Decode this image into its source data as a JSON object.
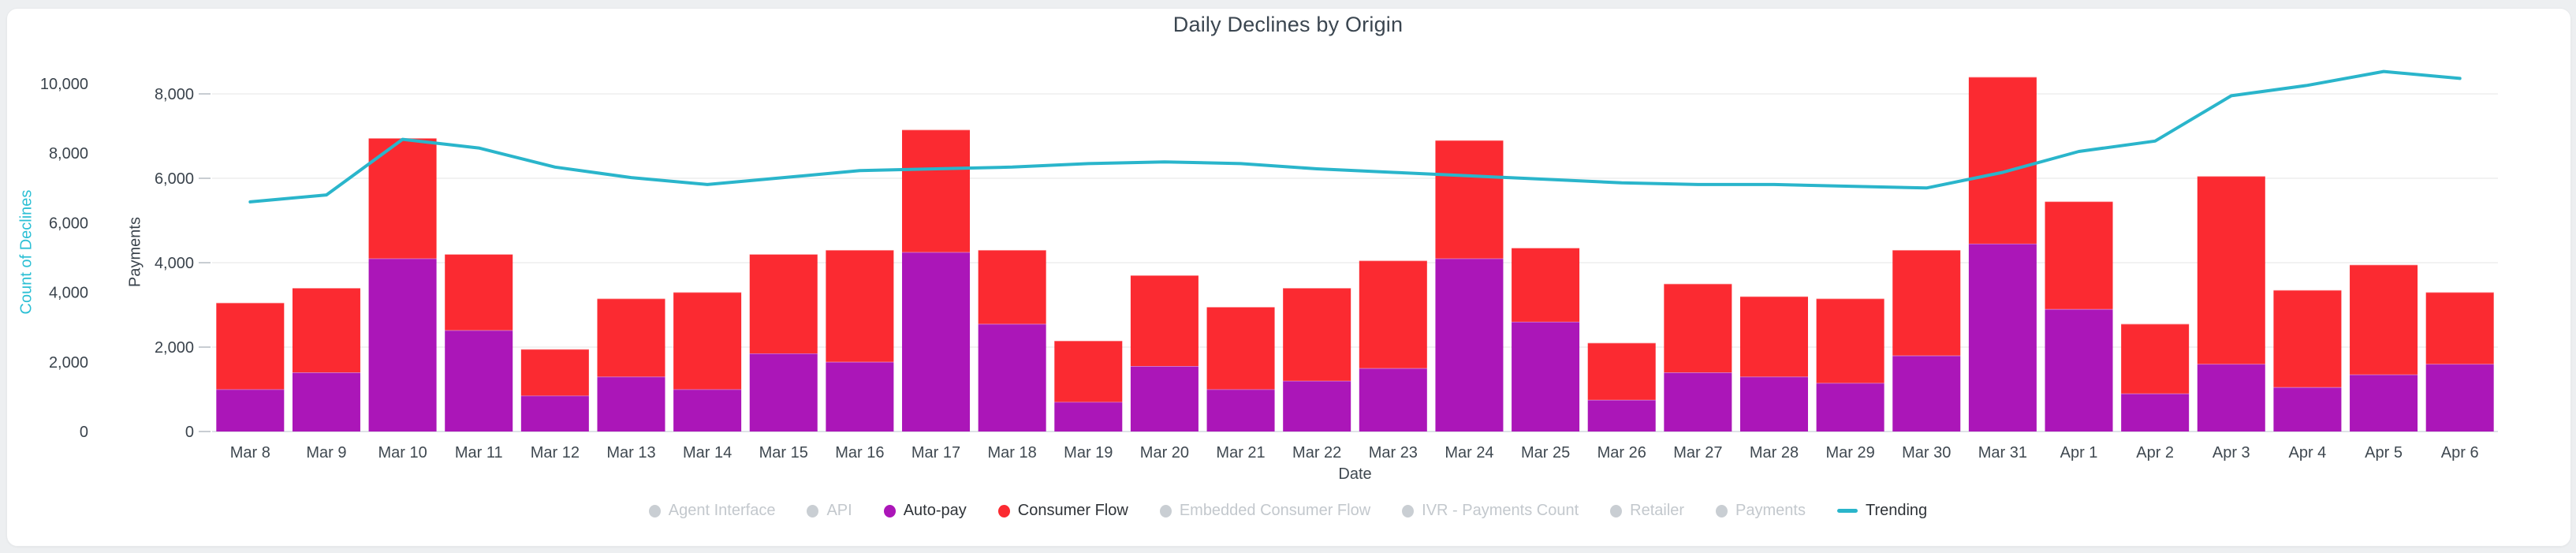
{
  "page": {
    "background_color": "#edeff1",
    "card_color": "#ffffff"
  },
  "header": {
    "title": "Daily Declines by Origin"
  },
  "chart_data": {
    "type": "bar",
    "title": "Daily Declines by Origin",
    "xlabel": "Date",
    "grid": true,
    "legend_position": "bottom",
    "categories": [
      "Mar 8",
      "Mar 9",
      "Mar 10",
      "Mar 11",
      "Mar 12",
      "Mar 13",
      "Mar 14",
      "Mar 15",
      "Mar 16",
      "Mar 17",
      "Mar 18",
      "Mar 19",
      "Mar 20",
      "Mar 21",
      "Mar 22",
      "Mar 23",
      "Mar 24",
      "Mar 25",
      "Mar 26",
      "Mar 27",
      "Mar 28",
      "Mar 29",
      "Mar 30",
      "Mar 31",
      "Apr 1",
      "Apr 2",
      "Apr 3",
      "Apr 4",
      "Apr 5",
      "Apr 6"
    ],
    "y_axes": [
      {
        "name": "Count of Declines",
        "title_color": "#2bbfd4",
        "ticks": [
          0,
          2000,
          4000,
          6000,
          8000,
          10000
        ],
        "max": 10000
      },
      {
        "name": "Payments",
        "title_color": "#3a434c",
        "ticks": [
          0,
          2000,
          4000,
          6000,
          8000
        ],
        "max": 8000
      }
    ],
    "series": [
      {
        "name": "Auto-pay",
        "type": "bar",
        "stack": "origin",
        "axis": "payments",
        "color": "#ab16b8",
        "values": [
          1000,
          1400,
          4100,
          2400,
          850,
          1300,
          1000,
          1850,
          1650,
          4250,
          2550,
          700,
          1550,
          1000,
          1200,
          1500,
          4100,
          2600,
          750,
          1400,
          1300,
          1150,
          1800,
          4450,
          2900,
          900,
          1600,
          1050,
          1350,
          1600
        ]
      },
      {
        "name": "Consumer Flow",
        "type": "bar",
        "stack": "origin",
        "axis": "payments",
        "color": "#fb2a31",
        "values": [
          2050,
          2000,
          2850,
          1800,
          1100,
          1850,
          2300,
          2350,
          2650,
          2900,
          1750,
          1450,
          2150,
          1950,
          2200,
          2550,
          2800,
          1750,
          1350,
          2100,
          1900,
          2000,
          2500,
          3950,
          2550,
          1650,
          4450,
          2300,
          2600,
          1700
        ]
      },
      {
        "name": "Trending",
        "type": "line",
        "axis": "count",
        "color": "#2ab5cb",
        "values": [
          6600,
          6800,
          8400,
          8150,
          7600,
          7300,
          7100,
          7300,
          7500,
          7550,
          7600,
          7700,
          7750,
          7700,
          7550,
          7450,
          7350,
          7250,
          7150,
          7100,
          7100,
          7050,
          7000,
          7450,
          8050,
          8350,
          9650,
          9950,
          10350,
          10150
        ]
      }
    ],
    "legend": [
      {
        "label": "Agent Interface",
        "color": "#c9ced3",
        "active": false,
        "icon": "dot"
      },
      {
        "label": "API",
        "color": "#c9ced3",
        "active": false,
        "icon": "dot"
      },
      {
        "label": "Auto-pay",
        "color": "#ab16b8",
        "active": true,
        "icon": "dot"
      },
      {
        "label": "Consumer Flow",
        "color": "#fb2a31",
        "active": true,
        "icon": "dot"
      },
      {
        "label": "Embedded Consumer Flow",
        "color": "#c9ced3",
        "active": false,
        "icon": "dot"
      },
      {
        "label": "IVR - Payments Count",
        "color": "#c9ced3",
        "active": false,
        "icon": "dot"
      },
      {
        "label": "Retailer",
        "color": "#c9ced3",
        "active": false,
        "icon": "dot"
      },
      {
        "label": "Payments",
        "color": "#c9ced3",
        "active": false,
        "icon": "dot"
      },
      {
        "label": "Trending",
        "color": "#2ab5cb",
        "active": true,
        "icon": "line"
      }
    ],
    "style": {
      "gridline_color": "#ededed",
      "axis_line_color": "#dfe3e7",
      "tick_mark_color": "#c8cdd2",
      "tick_label_color": "#3a434c",
      "x_label_color": "#3f4850"
    }
  }
}
